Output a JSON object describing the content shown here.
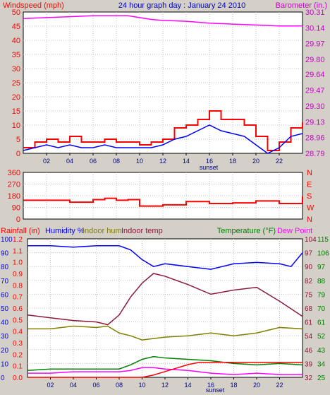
{
  "chart_data": [
    {
      "type": "line",
      "title": "24 hour graph day : January 24 2010",
      "left_axis_title": "Windspeed (mph)",
      "right_axis_title": "Barometer (in.)",
      "x_tick_labels": [
        "02",
        "04",
        "06",
        "08",
        "10",
        "12",
        "14",
        "16",
        "18",
        "20",
        "22"
      ],
      "x_annotation": "sunset",
      "left_ticks": [
        "0",
        "5",
        "10",
        "15",
        "20",
        "25",
        "30",
        "35",
        "40",
        "45",
        "50"
      ],
      "right_ticks": [
        "28.79",
        "28.96",
        "29.13",
        "29.30",
        "29.47",
        "29.64",
        "29.80",
        "29.97",
        "30.14",
        "30.31"
      ],
      "ylim_left": [
        0,
        50
      ],
      "ylim_right": [
        28.79,
        30.31
      ],
      "grid": true,
      "series": [
        {
          "name": "Windspeed (mph)",
          "axis": "left",
          "color": "#ff0000",
          "x": [
            0,
            1,
            2,
            3,
            4,
            5,
            6,
            7,
            8,
            9,
            10,
            11,
            12,
            13,
            14,
            15,
            16,
            17,
            18,
            19,
            20,
            21,
            22,
            23,
            24
          ],
          "values": [
            2,
            4,
            5,
            4,
            6,
            4,
            4,
            5,
            4,
            4,
            3,
            4,
            5,
            9,
            10,
            12,
            15,
            12,
            12,
            10,
            6,
            1,
            4,
            9,
            11
          ]
        },
        {
          "name": "Wind avg",
          "axis": "left",
          "color": "#0000ff",
          "x": [
            0,
            1,
            2,
            3,
            4,
            5,
            6,
            7,
            8,
            9,
            10,
            11,
            12,
            13,
            14,
            15,
            16,
            17,
            18,
            19,
            20,
            21,
            22,
            23,
            24
          ],
          "values": [
            1,
            2,
            3,
            2,
            3,
            2,
            2,
            3,
            2,
            2,
            2,
            2,
            3,
            5,
            6,
            8,
            10,
            8,
            7,
            6,
            3,
            0,
            2,
            6,
            7
          ]
        },
        {
          "name": "Barometer (in.)",
          "axis": "right",
          "color": "#ff00ff",
          "x": [
            0,
            2,
            4,
            6,
            8,
            9,
            10,
            11,
            12,
            14,
            16,
            18,
            20,
            22,
            24
          ],
          "values": [
            30.24,
            30.25,
            30.26,
            30.27,
            30.27,
            30.27,
            30.25,
            30.23,
            30.22,
            30.21,
            30.19,
            30.18,
            30.17,
            30.16,
            30.16
          ]
        }
      ]
    },
    {
      "type": "line",
      "title": "",
      "x_tick_labels": [],
      "left_ticks": [
        "0",
        "90",
        "180",
        "270",
        "360"
      ],
      "right_ticks": [
        "N",
        "W",
        "S",
        "E",
        "N"
      ],
      "ylim_left": [
        0,
        360
      ],
      "grid": true,
      "series": [
        {
          "name": "Wind direction",
          "axis": "left",
          "color": "#ff0000",
          "x": [
            0,
            2,
            4,
            6,
            7,
            8,
            9,
            10,
            11,
            12,
            14,
            16,
            18,
            20,
            22,
            23,
            24
          ],
          "values": [
            145,
            145,
            130,
            150,
            160,
            145,
            150,
            100,
            100,
            110,
            135,
            120,
            125,
            140,
            120,
            120,
            175
          ]
        }
      ]
    },
    {
      "type": "line",
      "title": "",
      "labels": {
        "rainfall": "Rainfall (in)",
        "humidity": "Humidity %",
        "indoor_hum": "Indoor hum",
        "indoor_temp": "Indoor temp",
        "temperature": "Temperature (°F)",
        "dew_point": "Dew Point"
      },
      "x_tick_labels": [
        "02",
        "04",
        "06",
        "08",
        "10",
        "12",
        "14",
        "16",
        "18",
        "20",
        "22"
      ],
      "x_annotation": "sunset",
      "rain_ticks": [
        "0.0",
        "0.1",
        "0.2",
        "0.3",
        "0.4",
        "0.5",
        "0.6",
        "0.7",
        "0.8",
        "0.9",
        "1.0",
        "1.1",
        "1.2"
      ],
      "humidity_ticks": [
        "0",
        "10",
        "20",
        "30",
        "40",
        "50",
        "60",
        "70",
        "80",
        "90",
        "100"
      ],
      "temp_ticks": [
        "32",
        "39",
        "46",
        "54",
        "61",
        "68",
        "75",
        "82",
        "90",
        "97",
        "104"
      ],
      "indoor_ticks": [
        "25",
        "34",
        "43",
        "52",
        "61",
        "70",
        "79",
        "88",
        "97",
        "106",
        "115"
      ],
      "ylim_humidity": [
        0,
        100
      ],
      "ylim_rain": [
        0,
        1.2
      ],
      "grid": true,
      "series": [
        {
          "name": "Humidity %",
          "axis": "humidity",
          "color": "#0000ff",
          "x": [
            0,
            2,
            4,
            6,
            8,
            9,
            10,
            11,
            12,
            14,
            16,
            18,
            20,
            22,
            23,
            24
          ],
          "values": [
            95,
            95,
            94,
            95,
            95,
            92,
            85,
            80,
            82,
            80,
            78,
            82,
            83,
            82,
            80,
            90
          ]
        },
        {
          "name": "Indoor hum",
          "axis": "humidity",
          "color": "#808000",
          "x": [
            0,
            2,
            4,
            6,
            7,
            8,
            9,
            10,
            11,
            12,
            14,
            16,
            18,
            20,
            22,
            24
          ],
          "values": [
            35,
            35,
            37,
            36,
            37,
            32,
            30,
            27,
            28,
            29,
            30,
            32,
            30,
            32,
            36,
            35
          ]
        },
        {
          "name": "Indoor temp",
          "axis": "humidity",
          "color": "#8b1a3a",
          "x": [
            0,
            2,
            4,
            6,
            7,
            8,
            9,
            10,
            11,
            12,
            14,
            16,
            18,
            20,
            22,
            24
          ],
          "values": [
            45,
            43,
            41,
            40,
            38,
            45,
            58,
            68,
            75,
            73,
            67,
            60,
            63,
            65,
            55,
            44
          ]
        },
        {
          "name": "Temperature (°F)",
          "axis": "humidity",
          "color": "#008000",
          "x": [
            0,
            2,
            4,
            6,
            8,
            9,
            10,
            11,
            12,
            14,
            16,
            18,
            20,
            22,
            24
          ],
          "values": [
            5,
            6,
            6,
            6,
            6,
            9,
            13,
            15,
            14,
            13,
            12,
            10,
            9,
            10,
            9
          ]
        },
        {
          "name": "Dew Point",
          "axis": "humidity",
          "color": "#ff00ff",
          "x": [
            0,
            2,
            4,
            6,
            8,
            9,
            10,
            11,
            12,
            14,
            16,
            18,
            20,
            22,
            24
          ],
          "values": [
            3,
            3,
            4,
            4,
            4,
            5,
            7,
            7,
            6,
            5,
            3,
            2,
            3,
            2,
            2
          ]
        },
        {
          "name": "Rainfall (in)",
          "axis": "rain",
          "color": "#ff0000",
          "x": [
            0,
            2,
            4,
            6,
            8,
            9,
            10,
            11,
            12,
            13,
            14,
            15,
            16,
            18,
            20,
            22,
            24
          ],
          "values": [
            0,
            0,
            0,
            0,
            0,
            0,
            0,
            0.02,
            0.05,
            0.08,
            0.11,
            0.13,
            0.13,
            0.13,
            0.13,
            0.13,
            0.13
          ]
        }
      ]
    }
  ]
}
